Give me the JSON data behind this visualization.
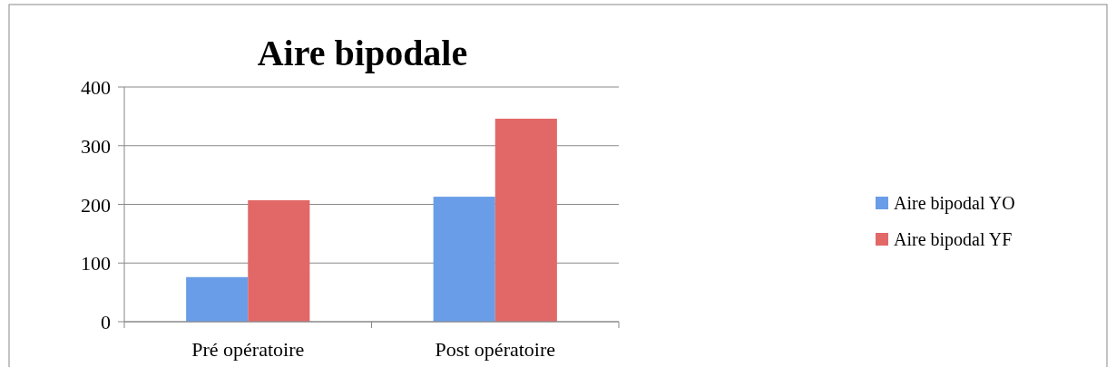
{
  "chart_data": {
    "type": "bar",
    "title": "Aire bipodale",
    "categories": [
      "Pré opératoire",
      "Post opératoire"
    ],
    "series": [
      {
        "name": "Aire bipodal YO",
        "color": "#6a9de8",
        "values": [
          76,
          213
        ]
      },
      {
        "name": "Aire bipodal YF",
        "color": "#e26868",
        "values": [
          207,
          346
        ]
      }
    ],
    "ylim": [
      0,
      400
    ],
    "yticks": [
      0,
      100,
      200,
      300,
      400
    ],
    "grid": "y",
    "legend": "right"
  }
}
